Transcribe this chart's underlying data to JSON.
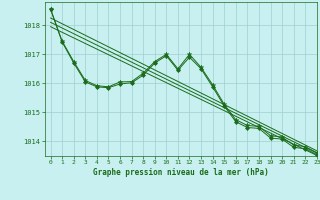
{
  "title": "Graphe pression niveau de la mer (hPa)",
  "bg_color": "#c8f0f0",
  "grid_color": "#9fcfcf",
  "line_color": "#1a6b1a",
  "marker_color": "#1a6b1a",
  "xlim": [
    -0.5,
    23
  ],
  "ylim": [
    1013.5,
    1018.8
  ],
  "yticks": [
    1014,
    1015,
    1016,
    1017,
    1018
  ],
  "xticks": [
    0,
    1,
    2,
    3,
    4,
    5,
    6,
    7,
    8,
    9,
    10,
    11,
    12,
    13,
    14,
    15,
    16,
    17,
    18,
    19,
    20,
    21,
    22,
    23
  ],
  "series_zigzag": [
    [
      0,
      1018.55
    ],
    [
      1,
      1017.45
    ],
    [
      2,
      1016.75
    ],
    [
      3,
      1016.1
    ],
    [
      4,
      1015.92
    ],
    [
      5,
      1015.88
    ],
    [
      6,
      1016.05
    ],
    [
      7,
      1016.06
    ],
    [
      8,
      1016.35
    ],
    [
      9,
      1016.75
    ],
    [
      10,
      1017.0
    ],
    [
      11,
      1016.5
    ],
    [
      12,
      1017.0
    ],
    [
      13,
      1016.55
    ],
    [
      14,
      1015.95
    ],
    [
      15,
      1015.28
    ],
    [
      16,
      1014.75
    ],
    [
      17,
      1014.55
    ],
    [
      18,
      1014.52
    ],
    [
      19,
      1014.2
    ],
    [
      20,
      1014.15
    ],
    [
      21,
      1013.88
    ],
    [
      22,
      1013.82
    ],
    [
      23,
      1013.62
    ]
  ],
  "series_smooth": [
    [
      0,
      1018.55
    ],
    [
      1,
      1017.42
    ],
    [
      2,
      1016.7
    ],
    [
      3,
      1016.05
    ],
    [
      4,
      1015.88
    ],
    [
      5,
      1015.85
    ],
    [
      6,
      1015.98
    ],
    [
      7,
      1016.02
    ],
    [
      8,
      1016.28
    ],
    [
      9,
      1016.7
    ],
    [
      10,
      1016.95
    ],
    [
      11,
      1016.45
    ],
    [
      12,
      1016.9
    ],
    [
      13,
      1016.5
    ],
    [
      14,
      1015.88
    ],
    [
      15,
      1015.22
    ],
    [
      16,
      1014.68
    ],
    [
      17,
      1014.48
    ],
    [
      18,
      1014.45
    ],
    [
      19,
      1014.12
    ],
    [
      20,
      1014.08
    ],
    [
      21,
      1013.8
    ],
    [
      22,
      1013.75
    ],
    [
      23,
      1013.55
    ]
  ],
  "reg_lines": [
    [
      [
        0,
        1018.25
      ],
      [
        23,
        1013.68
      ]
    ],
    [
      [
        0,
        1018.1
      ],
      [
        23,
        1013.6
      ]
    ],
    [
      [
        0,
        1017.95
      ],
      [
        23,
        1013.52
      ]
    ]
  ]
}
